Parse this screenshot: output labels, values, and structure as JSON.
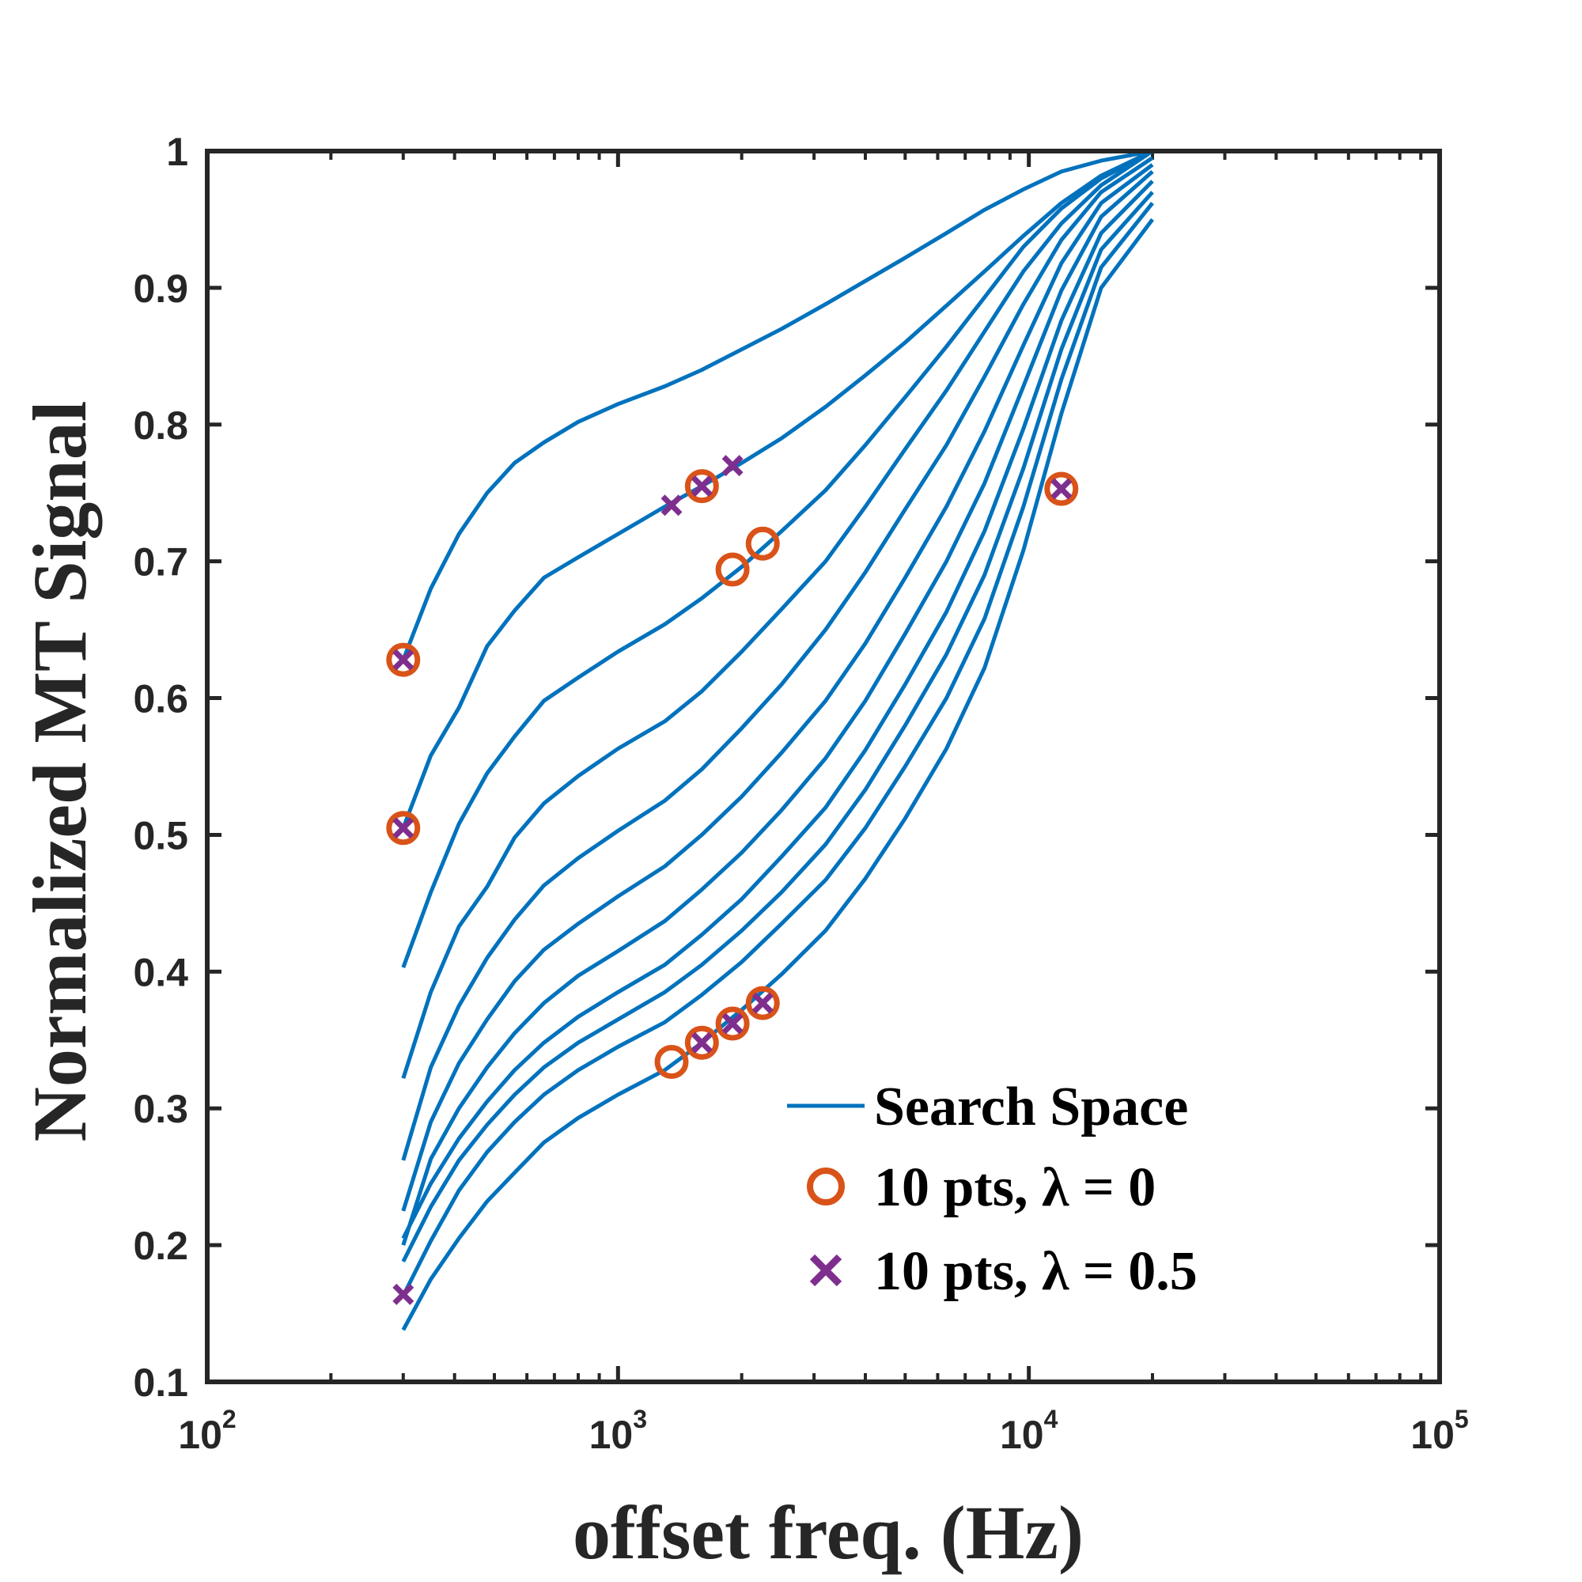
{
  "chart_data": {
    "type": "line",
    "title": "",
    "xlabel": "offset freq. (Hz)",
    "ylabel": "Normalized MT Signal",
    "xscale": "log",
    "xlim": [
      100,
      100000
    ],
    "ylim": [
      0.1,
      1
    ],
    "x_ticks": [
      {
        "base": "10",
        "exp": "2",
        "value": 100
      },
      {
        "base": "10",
        "exp": "3",
        "value": 1000
      },
      {
        "base": "10",
        "exp": "4",
        "value": 10000
      },
      {
        "base": "10",
        "exp": "5",
        "value": 100000
      }
    ],
    "y_ticks": [
      "0.1",
      "0.2",
      "0.3",
      "0.4",
      "0.5",
      "0.6",
      "0.7",
      "0.8",
      "0.9",
      "1"
    ],
    "grid": false,
    "legend_position": "bottom-right",
    "colors": {
      "line": "#0072BD",
      "circle": "#D95319",
      "cross": "#7E2F8E",
      "axis": "#262626"
    },
    "legend": [
      {
        "label": "Search Space",
        "marker": "line"
      },
      {
        "label": "10 pts, λ = 0",
        "marker": "circle"
      },
      {
        "label": "10 pts, λ = 0.5",
        "marker": "cross"
      }
    ],
    "x": [
      300,
      350,
      410,
      480,
      560,
      660,
      800,
      1000,
      1300,
      1600,
      2000,
      2500,
      3200,
      4000,
      5000,
      6300,
      7800,
      9700,
      12000,
      15000,
      20000
    ],
    "series": [
      {
        "values": [
          0.628,
          0.68,
          0.72,
          0.75,
          0.772,
          0.787,
          0.802,
          0.815,
          0.828,
          0.84,
          0.855,
          0.87,
          0.888,
          0.905,
          0.922,
          0.94,
          0.957,
          0.972,
          0.985,
          0.993,
          1.0
        ]
      },
      {
        "values": [
          0.505,
          0.558,
          0.593,
          0.638,
          0.664,
          0.688,
          0.703,
          0.72,
          0.74,
          0.755,
          0.772,
          0.79,
          0.813,
          0.836,
          0.86,
          0.887,
          0.912,
          0.938,
          0.962,
          0.982,
          1.0
        ]
      },
      {
        "values": [
          0.403,
          0.458,
          0.508,
          0.545,
          0.572,
          0.598,
          0.615,
          0.634,
          0.654,
          0.673,
          0.696,
          0.722,
          0.752,
          0.785,
          0.82,
          0.857,
          0.893,
          0.93,
          0.958,
          0.98,
          1.0
        ]
      },
      {
        "values": [
          0.322,
          0.385,
          0.433,
          0.462,
          0.498,
          0.523,
          0.543,
          0.563,
          0.583,
          0.605,
          0.634,
          0.665,
          0.7,
          0.74,
          0.782,
          0.825,
          0.868,
          0.912,
          0.947,
          0.975,
          1.0
        ]
      },
      {
        "values": [
          0.262,
          0.33,
          0.375,
          0.41,
          0.438,
          0.463,
          0.483,
          0.503,
          0.525,
          0.548,
          0.578,
          0.61,
          0.65,
          0.692,
          0.738,
          0.785,
          0.835,
          0.888,
          0.935,
          0.97,
          0.995
        ]
      },
      {
        "values": [
          0.225,
          0.29,
          0.333,
          0.365,
          0.393,
          0.416,
          0.435,
          0.455,
          0.477,
          0.5,
          0.528,
          0.56,
          0.598,
          0.64,
          0.688,
          0.74,
          0.795,
          0.858,
          0.918,
          0.962,
          0.99
        ]
      },
      {
        "values": [
          0.2,
          0.263,
          0.3,
          0.33,
          0.355,
          0.377,
          0.397,
          0.415,
          0.437,
          0.46,
          0.487,
          0.518,
          0.556,
          0.598,
          0.647,
          0.7,
          0.757,
          0.828,
          0.898,
          0.952,
          0.985
        ]
      },
      {
        "values": [
          0.205,
          0.245,
          0.278,
          0.305,
          0.328,
          0.348,
          0.367,
          0.385,
          0.405,
          0.427,
          0.453,
          0.484,
          0.52,
          0.562,
          0.61,
          0.663,
          0.722,
          0.797,
          0.876,
          0.94,
          0.978
        ]
      },
      {
        "values": [
          0.188,
          0.228,
          0.262,
          0.288,
          0.31,
          0.33,
          0.348,
          0.365,
          0.385,
          0.405,
          0.43,
          0.458,
          0.493,
          0.533,
          0.58,
          0.632,
          0.69,
          0.768,
          0.855,
          0.928,
          0.97
        ]
      },
      {
        "values": [
          0.163,
          0.203,
          0.24,
          0.268,
          0.29,
          0.31,
          0.328,
          0.345,
          0.363,
          0.383,
          0.407,
          0.435,
          0.467,
          0.505,
          0.55,
          0.6,
          0.658,
          0.74,
          0.833,
          0.915,
          0.962
        ]
      },
      {
        "values": [
          0.138,
          0.175,
          0.205,
          0.232,
          0.253,
          0.275,
          0.293,
          0.31,
          0.328,
          0.348,
          0.372,
          0.398,
          0.43,
          0.468,
          0.512,
          0.563,
          0.622,
          0.708,
          0.808,
          0.9,
          0.95
        ]
      }
    ],
    "markers_lambda_0": [
      {
        "x": 300,
        "y": 0.628
      },
      {
        "x": 300,
        "y": 0.505
      },
      {
        "x": 1600,
        "y": 0.755
      },
      {
        "x": 1900,
        "y": 0.694
      },
      {
        "x": 2250,
        "y": 0.713
      },
      {
        "x": 12000,
        "y": 0.753
      },
      {
        "x": 1350,
        "y": 0.334
      },
      {
        "x": 1600,
        "y": 0.348
      },
      {
        "x": 1900,
        "y": 0.362
      },
      {
        "x": 2250,
        "y": 0.377
      }
    ],
    "markers_lambda_0_5": [
      {
        "x": 300,
        "y": 0.628
      },
      {
        "x": 300,
        "y": 0.505
      },
      {
        "x": 300,
        "y": 0.164
      },
      {
        "x": 1350,
        "y": 0.741
      },
      {
        "x": 1600,
        "y": 0.755
      },
      {
        "x": 1900,
        "y": 0.77
      },
      {
        "x": 12000,
        "y": 0.753
      },
      {
        "x": 1600,
        "y": 0.348
      },
      {
        "x": 1900,
        "y": 0.362
      },
      {
        "x": 2250,
        "y": 0.377
      }
    ]
  }
}
